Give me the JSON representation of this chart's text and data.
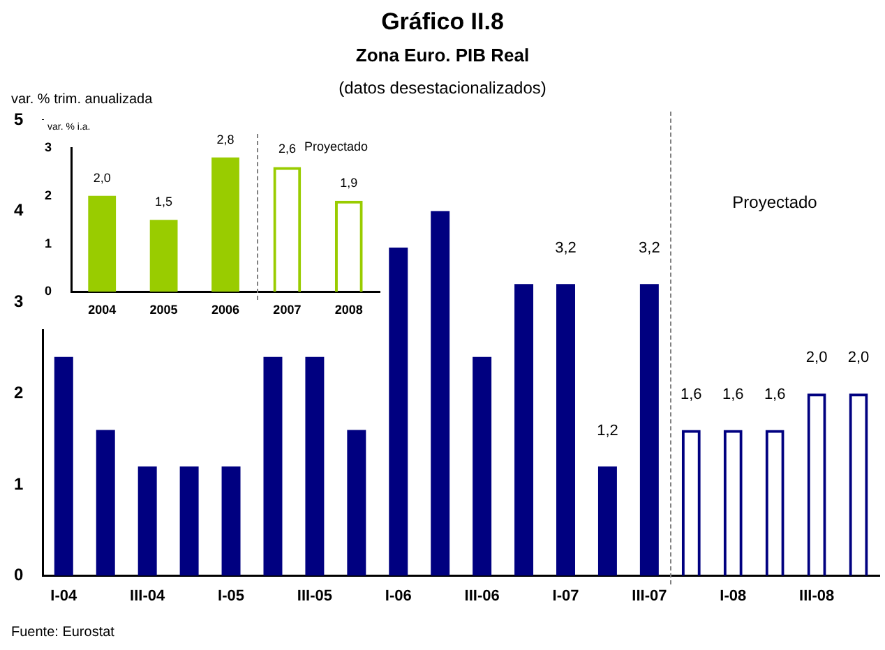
{
  "chart_data": [
    {
      "type": "bar",
      "title": "Gráfico II.8",
      "subtitle": "Zona Euro. PIB Real",
      "ylabel": "var. % trim. anualizada",
      "annotations": [
        "(datos desestacionalizados)",
        "Proyectado",
        "Fuente: Eurostat"
      ],
      "categories": [
        "I-04",
        null,
        "III-04",
        null,
        "I-05",
        null,
        "III-05",
        null,
        "I-06",
        null,
        "III-06",
        null,
        "I-07",
        null,
        "III-07",
        null,
        "I-08",
        null,
        "III-08",
        null
      ],
      "series": [
        {
          "color": "#000080",
          "values": [
            2.4,
            1.6,
            1.2,
            1.2,
            1.2,
            2.4,
            2.4,
            1.6,
            3.6,
            4.0,
            2.4,
            3.2,
            3.2,
            1.2,
            3.2,
            null,
            null,
            null,
            null,
            null
          ],
          "value_labels": [
            null,
            null,
            null,
            null,
            null,
            null,
            null,
            null,
            null,
            null,
            null,
            null,
            "3,2",
            "1,2",
            "3,2",
            null,
            null,
            null,
            null,
            null
          ]
        },
        {
          "color": "#000080",
          "values": [
            null,
            null,
            null,
            null,
            null,
            null,
            null,
            null,
            null,
            null,
            null,
            null,
            null,
            null,
            null,
            1.6,
            1.6,
            1.6,
            2.0,
            2.0
          ],
          "value_labels": [
            null,
            null,
            null,
            null,
            null,
            null,
            null,
            null,
            null,
            null,
            null,
            null,
            null,
            null,
            null,
            "1,6",
            "1,6",
            "1,6",
            "2,0",
            "2,0"
          ]
        }
      ],
      "ylim": [
        0,
        5
      ],
      "yticks": [
        0,
        1,
        2,
        3,
        4,
        5
      ]
    },
    {
      "type": "bar",
      "ylabel": "var. % i.a.",
      "annotations": [
        "Proyectado"
      ],
      "categories": [
        "2004",
        "2005",
        "2006",
        "2007",
        "2008"
      ],
      "series": [
        {
          "color": "#99cc00",
          "values": [
            2.0,
            1.5,
            2.8,
            null,
            null
          ],
          "value_labels": [
            "2,0",
            "1,5",
            "2,8",
            null,
            null
          ]
        },
        {
          "color": "#99cc00",
          "values": [
            null,
            null,
            null,
            2.6,
            1.9
          ],
          "value_labels": [
            null,
            null,
            null,
            "2,6",
            "1,9"
          ]
        }
      ],
      "ylim": [
        0,
        3
      ],
      "yticks": [
        0,
        1,
        2,
        3
      ]
    }
  ]
}
